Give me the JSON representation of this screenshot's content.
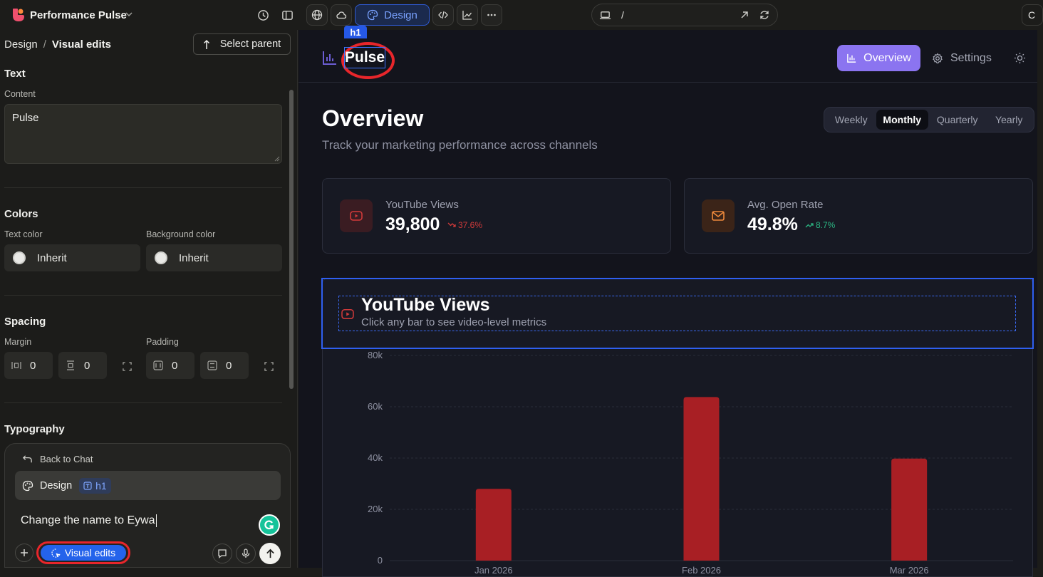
{
  "topbar": {
    "project_name": "Performance Pulse",
    "design_label": "Design",
    "url_path": "/",
    "right_cut": "C"
  },
  "left": {
    "breadcrumb_root": "Design",
    "breadcrumb_sep": "/",
    "breadcrumb_current": "Visual edits",
    "select_parent_label": "Select parent",
    "text_section": "Text",
    "content_label": "Content",
    "content_value": "Pulse",
    "colors_section": "Colors",
    "text_color_label": "Text color",
    "text_color_value": "Inherit",
    "bg_color_label": "Background color",
    "bg_color_value": "Inherit",
    "spacing_section": "Spacing",
    "margin_label": "Margin",
    "margin_x": "0",
    "margin_y": "0",
    "padding_label": "Padding",
    "padding_x": "0",
    "padding_y": "0",
    "typography_section": "Typography"
  },
  "chat": {
    "back_label": "Back to Chat",
    "context_label": "Design",
    "context_tag": "h1",
    "message": "Change the name to Eywa",
    "visual_edits_label": "Visual edits"
  },
  "app": {
    "brand": "Pulse",
    "selected_tag": "h1",
    "nav": [
      {
        "label": "Overview",
        "active": true
      },
      {
        "label": "Settings",
        "active": false
      }
    ],
    "page_title": "Overview",
    "page_subtitle": "Track your marketing performance across channels",
    "periods": [
      {
        "label": "Weekly",
        "active": false
      },
      {
        "label": "Monthly",
        "active": true
      },
      {
        "label": "Quarterly",
        "active": false
      },
      {
        "label": "Yearly",
        "active": false
      }
    ],
    "stats": [
      {
        "label": "YouTube Views",
        "value": "39,800",
        "delta": "37.6%",
        "trend": "down",
        "icon": "youtube-icon",
        "color": "#d13a3a"
      },
      {
        "label": "Avg. Open Rate",
        "value": "49.8%",
        "delta": "8.7%",
        "trend": "up",
        "icon": "mail-icon",
        "color": "#f08a3c"
      }
    ],
    "chart_card": {
      "title": "YouTube Views",
      "subtitle": "Click any bar to see video-level metrics"
    }
  },
  "chart_data": {
    "type": "bar",
    "categories": [
      "Jan 2026",
      "Feb 2026",
      "Mar 2026"
    ],
    "values": [
      28000,
      63800,
      39800
    ],
    "ylim": [
      0,
      80000
    ],
    "yticks": [
      0,
      20000,
      40000,
      60000,
      80000
    ],
    "ytick_labels": [
      "0",
      "20k",
      "40k",
      "60k",
      "80k"
    ],
    "grid": true,
    "bar_color": "#a81f24",
    "title": "YouTube Views"
  }
}
